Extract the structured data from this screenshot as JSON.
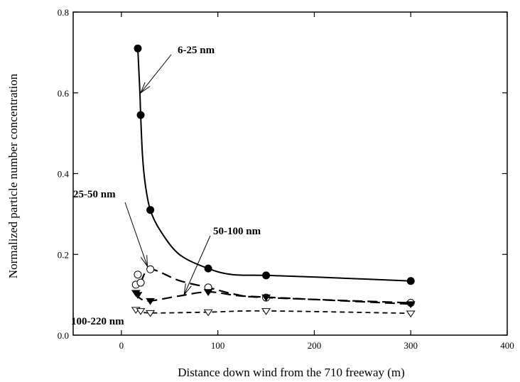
{
  "chart_data": {
    "type": "line",
    "xlabel": "Distance down wind from the 710 freeway (m)",
    "ylabel": "Normalized particle number concentration",
    "xlim": [
      -50,
      400
    ],
    "ylim": [
      0,
      0.8
    ],
    "x_ticks": [
      0,
      100,
      200,
      300,
      400
    ],
    "x_tick_labels": [
      "0",
      "100",
      "200",
      "300",
      "400"
    ],
    "y_ticks": [
      0.0,
      0.2,
      0.4,
      0.6,
      0.8
    ],
    "y_tick_labels": [
      "0.0",
      "0.2",
      "0.4",
      "0.6",
      "0.8"
    ],
    "grid": false,
    "legend": "none",
    "series": [
      {
        "name": "6-25 nm",
        "marker": "filled-circle",
        "line_style": "solid",
        "x": [
          17,
          20,
          30,
          90,
          150,
          300
        ],
        "y": [
          0.71,
          0.545,
          0.31,
          0.165,
          0.148,
          0.134
        ],
        "curve": [
          [
            17,
            0.71
          ],
          [
            19,
            0.61
          ],
          [
            20,
            0.545
          ],
          [
            22,
            0.44
          ],
          [
            25,
            0.37
          ],
          [
            30,
            0.31
          ],
          [
            40,
            0.26
          ],
          [
            60,
            0.2
          ],
          [
            90,
            0.165
          ],
          [
            115,
            0.15
          ],
          [
            150,
            0.148
          ],
          [
            220,
            0.142
          ],
          [
            300,
            0.134
          ]
        ]
      },
      {
        "name": "25-50 nm",
        "marker": "open-circle",
        "line_style": "long-dash",
        "x": [
          15,
          17,
          20,
          30,
          90,
          150,
          300
        ],
        "y": [
          0.125,
          0.15,
          0.13,
          0.163,
          0.118,
          0.093,
          0.08
        ],
        "curve": [
          [
            20,
            0.13
          ],
          [
            30,
            0.163
          ],
          [
            60,
            0.135
          ],
          [
            90,
            0.118
          ],
          [
            120,
            0.1
          ],
          [
            150,
            0.093
          ],
          [
            300,
            0.08
          ]
        ]
      },
      {
        "name": "50-100 nm",
        "marker": "filled-triangle",
        "line_style": "long-dash",
        "x": [
          15,
          17,
          30,
          90,
          150,
          300
        ],
        "y": [
          0.105,
          0.1,
          0.085,
          0.107,
          0.094,
          0.077
        ],
        "curve": [
          [
            15,
            0.105
          ],
          [
            20,
            0.09
          ],
          [
            30,
            0.085
          ],
          [
            60,
            0.097
          ],
          [
            90,
            0.107
          ],
          [
            120,
            0.098
          ],
          [
            150,
            0.094
          ],
          [
            300,
            0.077
          ]
        ]
      },
      {
        "name": "100-220 nm",
        "marker": "open-triangle",
        "line_style": "short-dash",
        "x": [
          15,
          20,
          30,
          90,
          150,
          300
        ],
        "y": [
          0.063,
          0.06,
          0.055,
          0.057,
          0.06,
          0.054
        ],
        "curve": [
          [
            15,
            0.063
          ],
          [
            20,
            0.06
          ],
          [
            30,
            0.055
          ],
          [
            90,
            0.057
          ],
          [
            150,
            0.06
          ],
          [
            300,
            0.054
          ]
        ]
      }
    ],
    "annotations": [
      {
        "text": "6-25 nm",
        "arrow_to": [
          20,
          0.6
        ]
      },
      {
        "text": "25-50 nm",
        "arrow_to": [
          27,
          0.17
        ]
      },
      {
        "text": "50-100 nm",
        "arrow_to": [
          65,
          0.1
        ]
      },
      {
        "text": "100-220 nm",
        "arrow_to": null
      }
    ]
  }
}
